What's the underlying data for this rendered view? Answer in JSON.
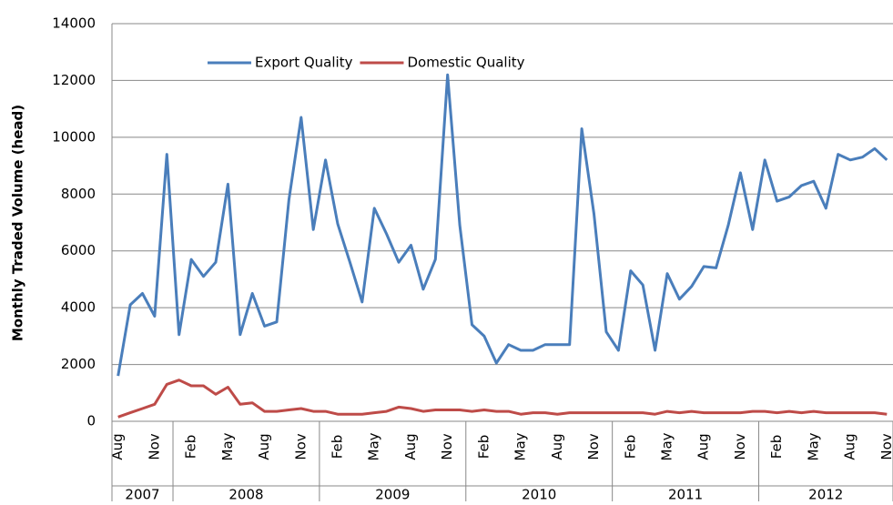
{
  "chart_data": {
    "type": "line",
    "y_label": "Monthly Traded Volume (head)",
    "categories": [
      "Aug",
      null,
      null,
      "Nov",
      null,
      null,
      "Feb",
      null,
      null,
      "May",
      null,
      null,
      "Aug",
      null,
      null,
      "Nov",
      null,
      null,
      "Feb",
      null,
      null,
      "May",
      null,
      null,
      "Aug",
      null,
      null,
      "Nov",
      null,
      null,
      "Feb",
      null,
      null,
      "May",
      null,
      null,
      "Aug",
      null,
      null,
      "Nov",
      null,
      null,
      "Feb",
      null,
      null,
      "May",
      null,
      null,
      "Aug",
      null,
      null,
      "Nov",
      null,
      null,
      "Feb",
      null,
      null,
      "May",
      null,
      null,
      "Aug",
      null,
      null,
      "Nov"
    ],
    "years": [
      "2007",
      "2008",
      "2009",
      "2010",
      "2011",
      "2012"
    ],
    "series": [
      {
        "name": "Export Quality",
        "color": "#4a7ebb",
        "values": [
          1600,
          4100,
          4500,
          3700,
          9400,
          3050,
          5700,
          5100,
          5600,
          8350,
          3050,
          4500,
          3350,
          3500,
          7800,
          10700,
          6750,
          9200,
          6950,
          5600,
          4200,
          7500,
          6600,
          5600,
          6200,
          4650,
          5700,
          12200,
          6900,
          3400,
          3000,
          2050,
          2700,
          2500,
          2500,
          2700,
          2700,
          2700,
          10300,
          7300,
          3150,
          2500,
          5300,
          4800,
          2500,
          5200,
          4300,
          4750,
          5450,
          5400,
          6900,
          8750,
          6750,
          9200,
          7750,
          7900,
          8300,
          8450,
          7500,
          9400,
          9200,
          9300,
          9600,
          9200
        ]
      },
      {
        "name": "Domestic Quality",
        "color": "#be4b48",
        "values": [
          150,
          300,
          450,
          600,
          1300,
          1450,
          1250,
          1250,
          950,
          1200,
          600,
          650,
          350,
          350,
          400,
          450,
          350,
          350,
          250,
          250,
          250,
          300,
          350,
          500,
          450,
          350,
          400,
          400,
          400,
          350,
          400,
          350,
          350,
          250,
          300,
          300,
          250,
          300,
          300,
          300,
          300,
          300,
          300,
          300,
          250,
          350,
          300,
          350,
          300,
          300,
          300,
          300,
          350,
          350,
          300,
          350,
          300,
          350,
          300,
          300,
          300,
          300,
          300,
          250
        ]
      }
    ],
    "ylim": [
      0,
      14000
    ],
    "yticks": [
      0,
      2000,
      4000,
      6000,
      8000,
      10000,
      12000,
      14000
    ],
    "grid": true,
    "legend": "top"
  }
}
